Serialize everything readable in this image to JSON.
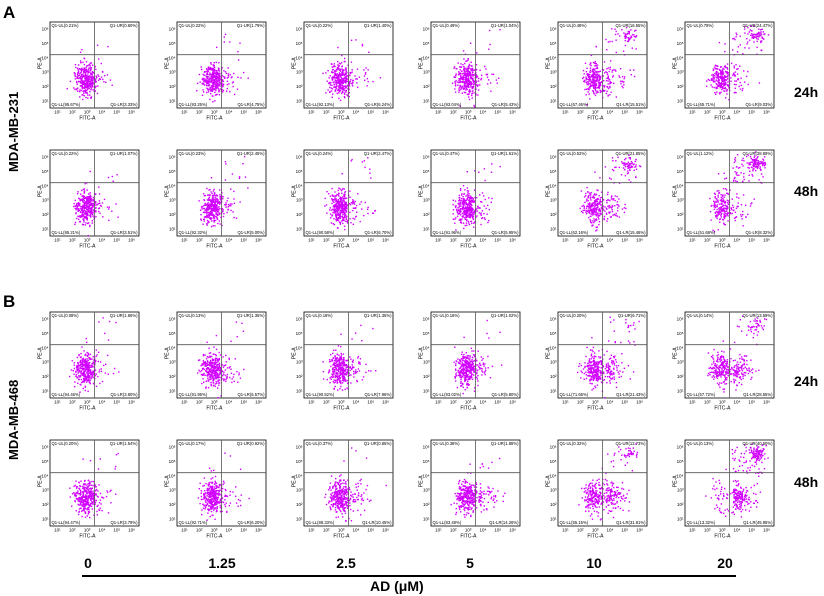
{
  "panels": [
    {
      "letter": "A",
      "cell_line": "MDA-MB-231",
      "rows": [
        {
          "time": "24h",
          "plots": [
            {
              "UL": "0.21%",
              "UR": "0.60%",
              "LL": "95.67%",
              "LR": "3.33%",
              "uru": "low"
            },
            {
              "UL": "0.22%",
              "UR": "1.79%",
              "LL": "93.25%",
              "LR": "4.75%",
              "uru": "low"
            },
            {
              "UL": "0.22%",
              "UR": "1.40%",
              "LL": "92.13%",
              "LR": "6.24%",
              "uru": "low"
            },
            {
              "UL": "0.49%",
              "UR": "1.04%",
              "LL": "93.04%",
              "LR": "5.43%",
              "uru": "low"
            },
            {
              "UL": "0.48%",
              "UR": "16.55%",
              "LL": "67.46%",
              "LR": "15.51%",
              "uru": "high"
            },
            {
              "UL": "0.79%",
              "UR": "24.47%",
              "LL": "65.71%",
              "LR": "9.03%",
              "uru": "high"
            }
          ]
        },
        {
          "time": "48h",
          "plots": [
            {
              "UL": "0.22%",
              "UR": "1.07%",
              "LL": "95.21%",
              "LR": "3.51%",
              "uru": "low"
            },
            {
              "UL": "0.23%",
              "UR": "2.45%",
              "LL": "92.32%",
              "LR": "5.00%",
              "uru": "low"
            },
            {
              "UL": "0.24%",
              "UR": "2.47%",
              "LL": "90.58%",
              "LR": "6.70%",
              "uru": "low"
            },
            {
              "UL": "0.47%",
              "UR": "1.61%",
              "LL": "91.96%",
              "LR": "5.95%",
              "uru": "low"
            },
            {
              "UL": "0.52%",
              "UR": "21.85%",
              "LL": "62.16%",
              "LR": "15.46%",
              "uru": "high"
            },
            {
              "UL": "1.12%",
              "UR": "38.89%",
              "LL": "51.68%",
              "LR": "8.32%",
              "uru": "high"
            }
          ]
        }
      ]
    },
    {
      "letter": "B",
      "cell_line": "MDA-MB-468",
      "rows": [
        {
          "time": "24h",
          "plots": [
            {
              "UL": "0.08%",
              "UR": "1.66%",
              "LL": "94.46%",
              "LR": "3.80%",
              "uru": "low"
            },
            {
              "UL": "0.13%",
              "UR": "1.35%",
              "LL": "91.95%",
              "LR": "6.57%",
              "uru": "low"
            },
            {
              "UL": "0.18%",
              "UR": "1.35%",
              "LL": "90.52%",
              "LR": "7.96%",
              "uru": "low"
            },
            {
              "UL": "0.16%",
              "UR": "1.02%",
              "LL": "93.02%",
              "LR": "5.80%",
              "uru": "low"
            },
            {
              "UL": "0.20%",
              "UR": "6.71%",
              "LL": "71.66%",
              "LR": "21.43%",
              "uru": "high"
            },
            {
              "UL": "0.14%",
              "UR": "13.59%",
              "LL": "57.72%",
              "LR": "28.55%",
              "uru": "high"
            }
          ]
        },
        {
          "time": "48h",
          "plots": [
            {
              "UL": "0.20%",
              "UR": "1.54%",
              "LL": "94.47%",
              "LR": "3.79%",
              "uru": "low"
            },
            {
              "UL": "0.17%",
              "UR": "0.92%",
              "LL": "92.71%",
              "LR": "6.20%",
              "uru": "low"
            },
            {
              "UL": "0.37%",
              "UR": "0.85%",
              "LL": "88.33%",
              "LR": "10.45%",
              "uru": "low"
            },
            {
              "UL": "0.38%",
              "UR": "1.88%",
              "LL": "83.48%",
              "LR": "14.26%",
              "uru": "low"
            },
            {
              "UL": "0.32%",
              "UR": "12.73%",
              "LL": "55.15%",
              "LR": "31.81%",
              "uru": "high"
            },
            {
              "UL": "0.13%",
              "UR": "40.60%",
              "LL": "13.32%",
              "LR": "45.95%",
              "uru": "high"
            }
          ]
        }
      ]
    }
  ],
  "concentrations": [
    "0",
    "1.25",
    "2.5",
    "5",
    "10",
    "20"
  ],
  "x_axis_title": "AD (μM)",
  "plot_x_label": "FITC-A",
  "plot_y_label": "PE-A",
  "quadrant_labels": {
    "UL": "Q1-UL",
    "UR": "Q1-UR",
    "LL": "Q1-LL",
    "LR": "Q1-LR"
  },
  "x_ticks": [
    "10¹",
    "10²",
    "10³",
    "10⁴",
    "10⁵",
    "10⁶"
  ],
  "y_ticks": [
    "10⁶",
    "10⁵",
    "10⁴",
    "10³",
    "10²",
    "10¹"
  ],
  "colors": {
    "dots": "#d100ff",
    "axes": "#000000",
    "gate": "#555555"
  },
  "chart_data": {
    "type": "scatter",
    "xlabel": "FITC-A",
    "ylabel": "PE-A",
    "x_scale": "log",
    "y_scale": "log",
    "categories": [
      "0",
      "1.25",
      "2.5",
      "5",
      "10",
      "20"
    ],
    "category_axis_title": "AD (μM)",
    "series": [
      {
        "name": "MDA-MB-231 24h",
        "UL": [
          0.21,
          0.22,
          0.22,
          0.49,
          0.48,
          0.79
        ],
        "UR": [
          0.6,
          1.79,
          1.4,
          1.04,
          16.55,
          24.47
        ],
        "LL": [
          95.67,
          93.25,
          92.13,
          93.04,
          67.46,
          65.71
        ],
        "LR": [
          3.33,
          4.75,
          6.24,
          5.43,
          15.51,
          9.03
        ]
      },
      {
        "name": "MDA-MB-231 48h",
        "UL": [
          0.22,
          0.23,
          0.24,
          0.47,
          0.52,
          1.12
        ],
        "UR": [
          1.07,
          2.45,
          2.47,
          1.61,
          21.85,
          38.89
        ],
        "LL": [
          95.21,
          92.32,
          90.58,
          91.96,
          62.16,
          51.68
        ],
        "LR": [
          3.51,
          5.0,
          6.7,
          5.95,
          15.46,
          8.32
        ]
      },
      {
        "name": "MDA-MB-468 24h",
        "UL": [
          0.08,
          0.13,
          0.18,
          0.16,
          0.2,
          0.14
        ],
        "UR": [
          1.66,
          1.35,
          1.35,
          1.02,
          6.71,
          13.59
        ],
        "LL": [
          94.46,
          91.95,
          90.52,
          93.02,
          71.66,
          57.72
        ],
        "LR": [
          3.8,
          6.57,
          7.96,
          5.8,
          21.43,
          28.55
        ]
      },
      {
        "name": "MDA-MB-468 48h",
        "UL": [
          0.2,
          0.17,
          0.37,
          0.38,
          0.32,
          0.13
        ],
        "UR": [
          1.54,
          0.92,
          0.85,
          1.88,
          12.73,
          40.6
        ],
        "LL": [
          94.47,
          92.71,
          88.33,
          83.48,
          55.15,
          13.32
        ],
        "LR": [
          3.79,
          6.2,
          10.45,
          14.26,
          31.81,
          45.95
        ]
      }
    ]
  }
}
